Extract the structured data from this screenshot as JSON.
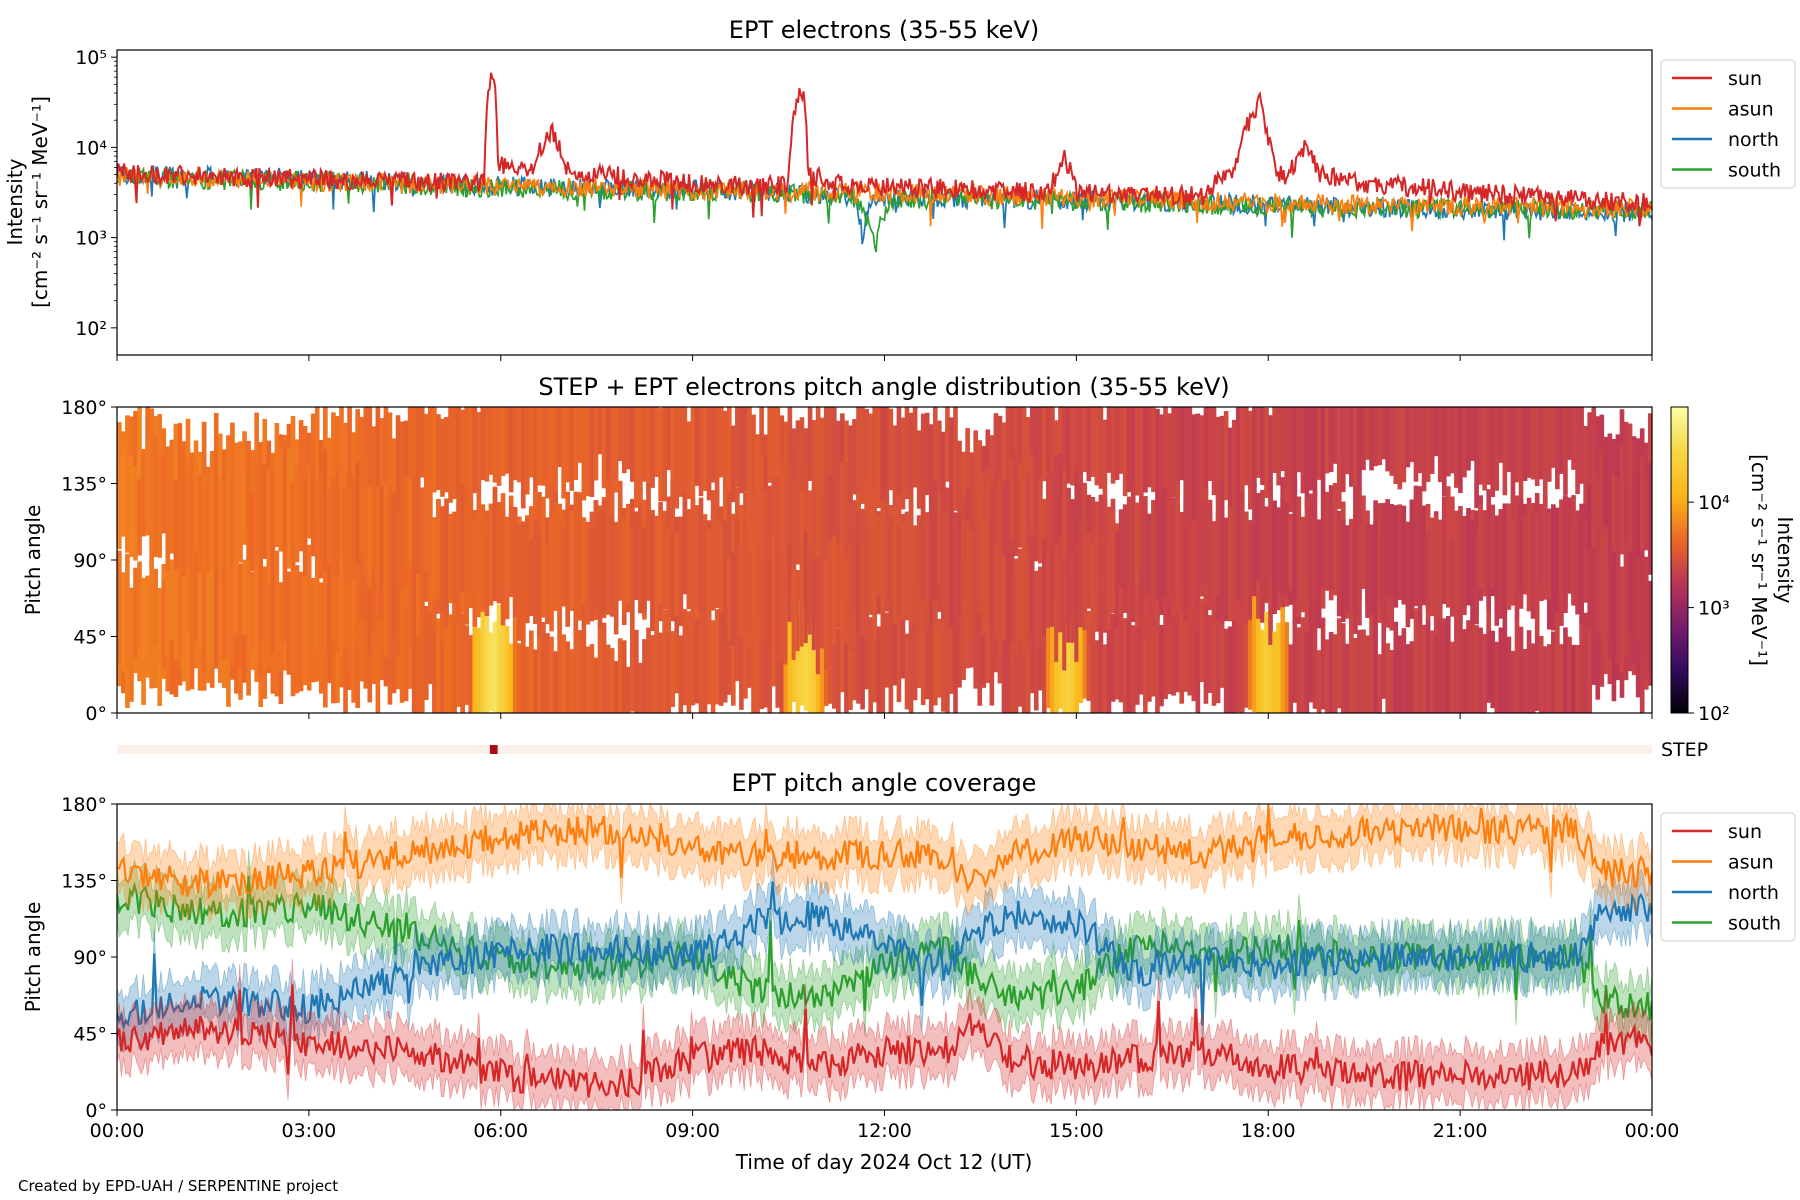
{
  "credit": "Created by EPD-UAH / SERPENTINE project",
  "colors": {
    "sun": "#d62728",
    "asun": "#ff7f0e",
    "north": "#1f77b4",
    "south": "#2ca02c",
    "step_bar_bg": "#fdf0ea",
    "step_marker": "#a50f15"
  },
  "chart_data": [
    {
      "id": "intensity",
      "type": "line",
      "title": "EPT electrons (35-55 keV)",
      "ylabel_line1": "Intensity",
      "ylabel_line2": "[cm⁻² s⁻¹ sr⁻¹ MeV⁻¹]",
      "yscale": "log",
      "ylim": [
        50,
        120000
      ],
      "ytick_labels": [
        "10²",
        "10³",
        "10⁴",
        "10⁵"
      ],
      "ytick_values": [
        100,
        1000,
        10000,
        100000
      ],
      "xlim_hours": [
        0,
        24
      ],
      "legend": {
        "placement": "outside-right",
        "entries": [
          "sun",
          "asun",
          "north",
          "south"
        ]
      },
      "series": [
        {
          "name": "sun",
          "x_hours": [
            0,
            1,
            2,
            3,
            4,
            5,
            5.75,
            5.88,
            5.95,
            6.2,
            6.5,
            6.8,
            7.0,
            7.5,
            8,
            9,
            10,
            10.5,
            10.7,
            10.8,
            11.1,
            12,
            13,
            14,
            14.6,
            14.8,
            15,
            16,
            17,
            17.5,
            17.9,
            17.97,
            18.1,
            18.3,
            18.6,
            18.8,
            19.5,
            20,
            21,
            22,
            23,
            24
          ],
          "y": [
            5200,
            5000,
            4600,
            4500,
            4300,
            4100,
            4000,
            80000,
            7000,
            5500,
            6000,
            15000,
            5500,
            5200,
            4600,
            4000,
            3800,
            3700,
            50000,
            5500,
            4000,
            3600,
            3500,
            3300,
            3200,
            8000,
            3100,
            3000,
            2900,
            6000,
            33000,
            15000,
            5500,
            4200,
            11000,
            5000,
            4000,
            3800,
            3200,
            2900,
            2600,
            2400
          ]
        },
        {
          "name": "asun",
          "x_hours": [
            0,
            2,
            4,
            6,
            8,
            10,
            12,
            14,
            16,
            18,
            20,
            22,
            24
          ],
          "y": [
            4800,
            4400,
            4100,
            3700,
            3500,
            3300,
            3100,
            2900,
            2700,
            2400,
            2300,
            2200,
            2100
          ]
        },
        {
          "name": "north",
          "x_hours": [
            0,
            2,
            4,
            6,
            8,
            10,
            10.7,
            11.5,
            11.65,
            11.8,
            12,
            14,
            16,
            18,
            20,
            22,
            24
          ],
          "y": [
            5000,
            4700,
            4300,
            3700,
            3500,
            3300,
            3100,
            2900,
            1000,
            2700,
            2800,
            2700,
            2500,
            2300,
            2100,
            2000,
            1900
          ]
        },
        {
          "name": "south",
          "x_hours": [
            0,
            2,
            4,
            6,
            8,
            10,
            11.5,
            11.85,
            12.1,
            14,
            16,
            18,
            20,
            22,
            24
          ],
          "y": [
            4600,
            4300,
            4000,
            3500,
            3300,
            3200,
            2900,
            700,
            2700,
            2600,
            2400,
            2200,
            2100,
            2100,
            2000
          ]
        }
      ]
    },
    {
      "id": "pad",
      "type": "heatmap",
      "title": "STEP + EPT electrons pitch angle distribution (35-55 keV)",
      "ylabel": "Pitch angle",
      "ylim": [
        0,
        180
      ],
      "ytick_labels": [
        "0°",
        "45°",
        "90°",
        "135°",
        "180°"
      ],
      "ytick_values": [
        0,
        45,
        90,
        135,
        180
      ],
      "xlim_hours": [
        0,
        24
      ],
      "colorbar": {
        "scale": "log",
        "range": [
          100,
          80000
        ],
        "tick_labels": [
          "10²",
          "10³",
          "10⁴"
        ],
        "tick_values": [
          100,
          1000,
          10000
        ],
        "label_line1": "Intensity",
        "label_line2": "[cm⁻² s⁻¹ sr⁻¹ MeV⁻¹]"
      },
      "background_intensity": [
        [
          0,
          5500
        ],
        [
          6,
          4000
        ],
        [
          11,
          3000
        ],
        [
          12,
          2800
        ],
        [
          18,
          2200
        ],
        [
          24,
          2000
        ]
      ],
      "enhancements_hours": [
        5.88,
        10.75,
        14.85,
        18.0
      ]
    },
    {
      "id": "step",
      "type": "heatmap",
      "label": "STEP",
      "xlim_hours": [
        0,
        24
      ],
      "marker_hours": [
        5.83,
        5.95
      ]
    },
    {
      "id": "coverage",
      "type": "line",
      "title": "EPT pitch angle coverage",
      "ylabel": "Pitch angle",
      "xlabel": "Time of day 2024 Oct 12 (UT)",
      "ylim": [
        0,
        180
      ],
      "ytick_labels": [
        "0°",
        "45°",
        "90°",
        "135°",
        "180°"
      ],
      "ytick_values": [
        0,
        45,
        90,
        135,
        180
      ],
      "xlim_hours": [
        0,
        24
      ],
      "xtick_labels": [
        "00:00",
        "03:00",
        "06:00",
        "09:00",
        "12:00",
        "15:00",
        "18:00",
        "21:00",
        "00:00"
      ],
      "xtick_hours": [
        0,
        3,
        6,
        9,
        12,
        15,
        18,
        21,
        24
      ],
      "legend": {
        "placement": "outside-right",
        "entries": [
          "sun",
          "asun",
          "north",
          "south"
        ]
      },
      "series": [
        {
          "name": "sun",
          "x_hours": [
            0,
            1.5,
            3,
            4.5,
            6.3,
            8,
            9,
            10,
            11,
            12,
            13,
            13.3,
            14,
            15,
            16,
            17,
            18,
            20,
            22,
            22.8,
            23.2,
            24
          ],
          "y": [
            40,
            48,
            40,
            35,
            18,
            15,
            30,
            35,
            25,
            35,
            35,
            50,
            30,
            25,
            30,
            35,
            25,
            20,
            20,
            20,
            40,
            40
          ]
        },
        {
          "name": "asun",
          "x_hours": [
            0,
            1.5,
            3,
            4.5,
            6.3,
            8,
            9,
            10,
            11,
            12,
            13,
            13.3,
            14,
            15,
            16,
            17,
            18,
            20,
            22,
            22.8,
            23.2,
            24
          ],
          "y": [
            140,
            132,
            140,
            150,
            162,
            165,
            155,
            150,
            150,
            150,
            150,
            130,
            150,
            160,
            155,
            150,
            160,
            165,
            165,
            165,
            140,
            140
          ]
        },
        {
          "name": "north",
          "x_hours": [
            0,
            1.5,
            3,
            4.5,
            6.3,
            8,
            9,
            10,
            11,
            12,
            13,
            13.3,
            14,
            15,
            16,
            17,
            18,
            20,
            22,
            22.8,
            23.2,
            24
          ],
          "y": [
            55,
            65,
            60,
            80,
            95,
            95,
            90,
            110,
            115,
            95,
            85,
            100,
            115,
            110,
            80,
            90,
            85,
            90,
            90,
            90,
            115,
            120
          ]
        },
        {
          "name": "south",
          "x_hours": [
            0,
            1.5,
            3,
            4.5,
            6.3,
            8,
            9,
            10,
            11,
            12,
            13,
            13.3,
            14,
            15,
            16,
            17,
            18,
            20,
            22,
            22.8,
            23.2,
            24
          ],
          "y": [
            125,
            115,
            120,
            105,
            85,
            85,
            90,
            70,
            65,
            85,
            95,
            80,
            65,
            70,
            100,
            90,
            95,
            90,
            90,
            90,
            65,
            60
          ]
        }
      ],
      "band_halfwidth_deg": 15
    }
  ]
}
